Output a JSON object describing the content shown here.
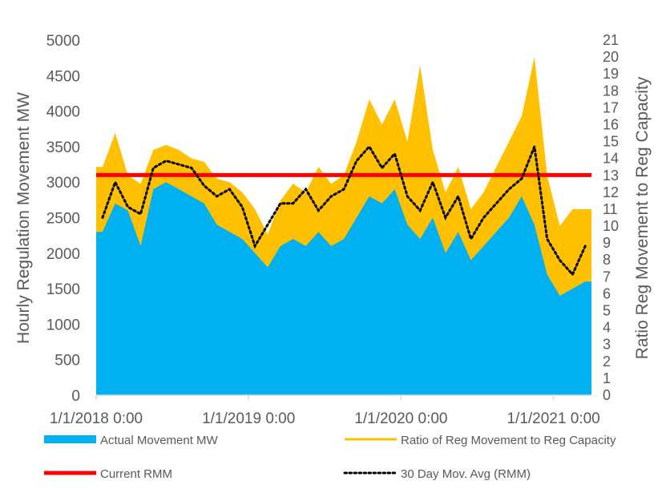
{
  "chart_data": {
    "type": "area",
    "title": "",
    "ylabel": "Hourly Regulation Movement MW",
    "y2label": "Ratio Reg Movement to Reg Capacity",
    "ylim": [
      0,
      5000
    ],
    "y2lim": [
      0,
      21
    ],
    "yticks": [
      "0",
      "500",
      "1000",
      "1500",
      "2000",
      "2500",
      "3000",
      "3500",
      "4000",
      "4500",
      "5000"
    ],
    "y2ticks": [
      "0",
      "1",
      "2",
      "3",
      "4",
      "5",
      "6",
      "7",
      "8",
      "9",
      "10",
      "11",
      "12",
      "13",
      "14",
      "15",
      "16",
      "17",
      "18",
      "19",
      "20",
      "21"
    ],
    "xticks": [
      "1/1/2018 0:00",
      "1/1/2019 0:00",
      "1/1/2020 0:00",
      "1/1/2021 0:00"
    ],
    "x_months_start": "2018-01",
    "legend_position": "bottom",
    "colors": {
      "actual": "#00B0F0",
      "ratio": "#FFC000",
      "rmm": "#FF0000",
      "avg": "#000000"
    },
    "series": [
      {
        "name": "Actual Movement MW",
        "axis": "left",
        "values": [
          2300,
          2700,
          2600,
          2100,
          2900,
          3000,
          2900,
          2800,
          2700,
          2400,
          2300,
          2200,
          2000,
          1800,
          2100,
          2200,
          2100,
          2300,
          2100,
          2200,
          2500,
          2800,
          2700,
          2900,
          2400,
          2200,
          2500,
          2000,
          2300,
          1900,
          2100,
          2300,
          2500,
          2800,
          2400,
          1700,
          1400,
          1500,
          1600
        ]
      },
      {
        "name": "Ratio of Reg Movement to Reg Capacity",
        "axis": "right",
        "values": [
          13.5,
          15.5,
          13,
          12.5,
          14.5,
          14.8,
          14.5,
          14,
          13.8,
          12.8,
          12.6,
          12,
          11,
          9.5,
          11.5,
          12.5,
          12,
          13.5,
          12.5,
          13,
          15,
          17.5,
          16,
          17.5,
          15,
          19.5,
          14.5,
          12,
          13.5,
          11,
          12,
          13.5,
          15,
          16.5,
          20,
          13,
          10,
          11,
          11
        ]
      },
      {
        "name": "Current RMM",
        "axis": "left",
        "value": 3100
      },
      {
        "name": "30 Day Mov. Avg (RMM)",
        "axis": "left",
        "values": [
          2500,
          3000,
          2650,
          2550,
          3200,
          3300,
          3250,
          3200,
          2950,
          2800,
          2900,
          2650,
          2100,
          2400,
          2700,
          2700,
          2900,
          2600,
          2800,
          2900,
          3300,
          3500,
          3200,
          3400,
          2800,
          2600,
          3000,
          2500,
          2800,
          2200,
          2500,
          2700,
          2900,
          3050,
          3500,
          2200,
          1900,
          1700,
          2100
        ]
      }
    ]
  }
}
